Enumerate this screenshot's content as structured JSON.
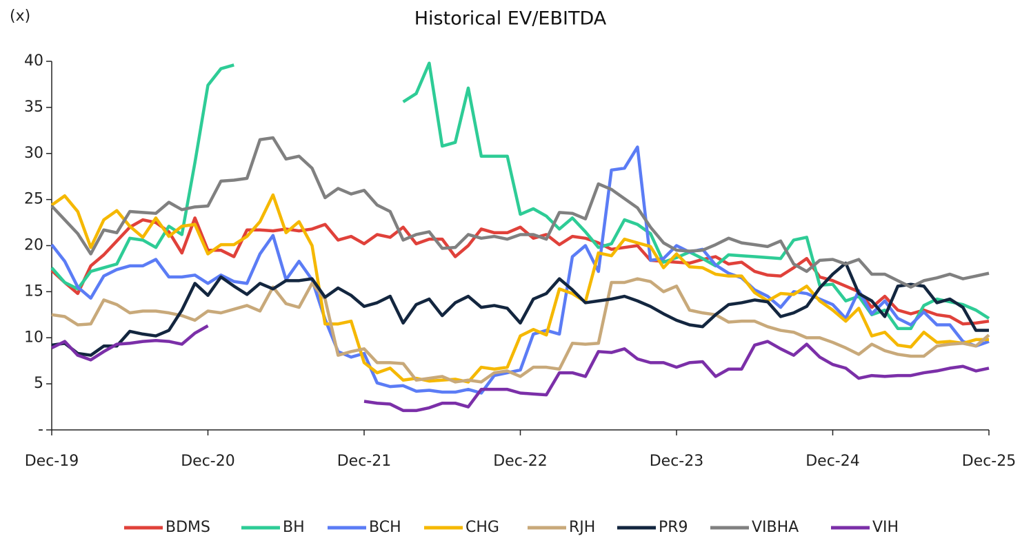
{
  "chart_data": {
    "type": "line",
    "title": "Historical EV/EBITDA",
    "y_label": "(x)",
    "categories": [
      "Dec-19",
      null,
      null,
      null,
      null,
      null,
      null,
      null,
      null,
      null,
      null,
      null,
      "Dec-20",
      null,
      null,
      null,
      null,
      null,
      null,
      null,
      null,
      null,
      null,
      null,
      "Dec-21",
      null,
      null,
      null,
      null,
      null,
      null,
      null,
      null,
      null,
      null,
      null,
      "Dec-22",
      null,
      null,
      null,
      null,
      null,
      null,
      null,
      null,
      null,
      null,
      null,
      "Dec-23",
      null,
      null,
      null,
      null,
      null,
      null,
      null,
      null,
      null,
      null,
      null,
      "Dec-24",
      null,
      null,
      null,
      null,
      null,
      null,
      null,
      null,
      null,
      null,
      null,
      "Dec-25"
    ],
    "ylim": [
      0,
      40
    ],
    "yticks": [
      {
        "value": 0,
        "label": "-"
      },
      5,
      10,
      15,
      20,
      25,
      30,
      35,
      40
    ],
    "legend": "bottom",
    "series": [
      {
        "name": "BDMS",
        "color": "#e0413a",
        "values": [
          17.3,
          16,
          14.8,
          17.8,
          19,
          20.5,
          22,
          22.8,
          22.5,
          21.5,
          19.2,
          23,
          19.5,
          19.5,
          18.8,
          21.7,
          21.7,
          21.6,
          21.8,
          21.6,
          21.8,
          22.3,
          20.6,
          21,
          20.2,
          21.2,
          20.9,
          22,
          20.2,
          20.7,
          20.7,
          18.8,
          20,
          21.8,
          21.4,
          21.4,
          22,
          20.8,
          21.2,
          20.1,
          21,
          20.8,
          20.3,
          19.6,
          19.8,
          20,
          18.4,
          18.3,
          18.2,
          18.1,
          18.5,
          18.8,
          18,
          18.2,
          17.2,
          16.8,
          16.7,
          17.6,
          18.6,
          16.6,
          16.2,
          15.6,
          15,
          13.3,
          14.5,
          13,
          12.6,
          13,
          12.5,
          12.3,
          11.5,
          11.6,
          11.8
        ]
      },
      {
        "name": "BH",
        "color": "#2ecc96",
        "values": [
          17.6,
          16,
          15.3,
          17.2,
          17.6,
          18,
          20.8,
          20.6,
          19.8,
          22.1,
          21.2,
          29,
          37.4,
          39.2,
          39.6,
          null,
          null,
          null,
          null,
          null,
          null,
          null,
          null,
          null,
          null,
          null,
          null,
          35.6,
          36.5,
          39.8,
          30.8,
          31.2,
          37.1,
          29.7,
          29.7,
          29.7,
          23.4,
          24,
          23.2,
          21.8,
          23,
          21.5,
          19.8,
          20.2,
          22.8,
          22.3,
          21.3,
          18.2,
          18.7,
          19.3,
          18.6,
          17.8,
          19,
          18.9,
          18.8,
          18.7,
          18.6,
          20.6,
          20.9,
          15.7,
          15.8,
          14,
          14.5,
          12.5,
          13,
          11,
          11,
          13.5,
          14.2,
          13.9,
          13.6,
          13,
          12.1
        ]
      },
      {
        "name": "BCH",
        "color": "#5b7cf5",
        "values": [
          20.1,
          18.3,
          15.5,
          14.3,
          16.7,
          17.4,
          17.8,
          17.8,
          18.5,
          16.6,
          16.6,
          16.8,
          15.9,
          16.8,
          16.1,
          15.9,
          19.1,
          21.1,
          16.3,
          18.3,
          16.3,
          12,
          8.5,
          7.9,
          8.3,
          5.1,
          4.7,
          4.8,
          4.2,
          4.3,
          4.1,
          4.1,
          4.4,
          4,
          5.9,
          6.2,
          6.5,
          10.4,
          10.8,
          10.4,
          18.8,
          20,
          17.2,
          28.2,
          28.4,
          30.7,
          18.4,
          18.6,
          20,
          19.3,
          19.6,
          17.9,
          17,
          16.5,
          15.2,
          14.5,
          13.3,
          15,
          14.8,
          14.2,
          13.6,
          12.1,
          15.1,
          12.6,
          14,
          12.1,
          11.4,
          12.8,
          11.4,
          11.4,
          9.6,
          9.1,
          9.6
        ]
      },
      {
        "name": "CHG",
        "color": "#f5b800",
        "values": [
          24.4,
          25.4,
          23.7,
          19.8,
          22.8,
          23.8,
          22.1,
          20.9,
          23,
          21,
          22.1,
          22.3,
          19.1,
          20.1,
          20.1,
          21,
          22.6,
          25.5,
          21.4,
          22.6,
          20,
          11.5,
          11.5,
          11.8,
          7.3,
          6.2,
          6.7,
          5.4,
          5.6,
          5.3,
          5.4,
          5.5,
          5.2,
          6.8,
          6.6,
          6.8,
          10.2,
          10.9,
          10.3,
          15.3,
          14.8,
          13.9,
          19.2,
          18.9,
          20.7,
          20.3,
          19.9,
          17.6,
          19.1,
          17.7,
          17.6,
          16.9,
          16.7,
          16.7,
          14.9,
          14,
          14.8,
          14.7,
          15.6,
          14,
          13,
          11.8,
          13.2,
          10.2,
          10.6,
          9.2,
          9,
          10.6,
          9.5,
          9.6,
          9.4,
          9.8,
          9.8
        ]
      },
      {
        "name": "RJH",
        "color": "#c8a97a",
        "values": [
          12.5,
          12.3,
          11.4,
          11.5,
          14.1,
          13.6,
          12.7,
          12.9,
          12.9,
          12.7,
          12.4,
          11.9,
          12.9,
          12.7,
          13.1,
          13.5,
          12.9,
          15.5,
          13.7,
          13.3,
          15.9,
          14.2,
          8.1,
          8.5,
          8.8,
          7.3,
          7.3,
          7.2,
          5.4,
          5.6,
          5.8,
          5.2,
          5.4,
          5.2,
          6.2,
          6.4,
          5.8,
          6.8,
          6.8,
          6.6,
          9.4,
          9.3,
          9.4,
          16,
          16,
          16.4,
          16.1,
          15,
          15.6,
          13,
          12.7,
          12.5,
          11.7,
          11.8,
          11.8,
          11.2,
          10.8,
          10.6,
          10,
          10,
          9.5,
          8.9,
          8.2,
          9.3,
          8.6,
          8.2,
          8,
          8,
          9.1,
          9.3,
          9.4,
          9.1,
          10.3
        ]
      },
      {
        "name": "PR9",
        "color": "#13263f",
        "values": [
          9.2,
          9.4,
          8.3,
          8.1,
          9.1,
          9.1,
          10.7,
          10.4,
          10.2,
          10.8,
          13,
          15.9,
          14.6,
          16.6,
          15.6,
          14.7,
          15.9,
          15.3,
          16.2,
          16.2,
          16.4,
          14.4,
          15.4,
          14.6,
          13.4,
          13.8,
          14.5,
          11.6,
          13.6,
          14.2,
          12.4,
          13.8,
          14.5,
          13.3,
          13.5,
          13.2,
          11.6,
          14.2,
          14.8,
          16.4,
          15.2,
          13.8,
          14,
          14.2,
          14.5,
          14,
          13.4,
          12.6,
          11.9,
          11.4,
          11.2,
          12.5,
          13.6,
          13.8,
          14.1,
          13.9,
          12.3,
          12.7,
          13.4,
          15.4,
          16.9,
          18.1,
          14.8,
          14,
          12.3,
          15.6,
          15.8,
          15.6,
          13.8,
          14.2,
          13.3,
          10.8,
          10.8
        ]
      },
      {
        "name": "VIBHA",
        "color": "#808080",
        "values": [
          24.3,
          22.8,
          21.3,
          19.1,
          21.7,
          21.4,
          23.7,
          23.6,
          23.5,
          24.7,
          23.9,
          24.2,
          24.3,
          27,
          27.1,
          27.3,
          31.5,
          31.7,
          29.4,
          29.7,
          28.4,
          25.2,
          26.2,
          25.6,
          26,
          24.4,
          23.7,
          20.6,
          21.2,
          21.5,
          19.7,
          19.8,
          21.2,
          20.8,
          21,
          20.7,
          21.2,
          21.2,
          20.7,
          23.6,
          23.5,
          22.9,
          26.7,
          26.1,
          25.1,
          24.1,
          22,
          20.3,
          19.5,
          19.4,
          19.5,
          20.1,
          20.8,
          20.3,
          20.1,
          19.9,
          20.5,
          18,
          17.2,
          18.4,
          18.5,
          18,
          18.5,
          16.9,
          16.9,
          16.2,
          15.5,
          16.2,
          16.5,
          16.9,
          16.4,
          16.7,
          17
        ]
      },
      {
        "name": "VIH",
        "color": "#7b2fa8",
        "values": [
          8.9,
          9.6,
          8.1,
          7.6,
          8.5,
          9.3,
          9.4,
          9.6,
          9.7,
          9.6,
          9.3,
          10.5,
          11.3,
          null,
          null,
          null,
          null,
          null,
          null,
          null,
          null,
          null,
          null,
          null,
          3.1,
          2.9,
          2.8,
          2.1,
          2.1,
          2.4,
          2.9,
          2.9,
          2.5,
          4.4,
          4.4,
          4.4,
          4,
          3.9,
          3.8,
          6.2,
          6.2,
          5.8,
          8.5,
          8.4,
          8.8,
          7.7,
          7.3,
          7.3,
          6.8,
          7.3,
          7.4,
          5.8,
          6.6,
          6.6,
          9.2,
          9.6,
          8.8,
          8.1,
          9.3,
          7.9,
          7.1,
          6.7,
          5.6,
          5.9,
          5.8,
          5.9,
          5.9,
          6.2,
          6.4,
          6.7,
          6.9,
          6.4,
          6.7
        ]
      }
    ]
  }
}
